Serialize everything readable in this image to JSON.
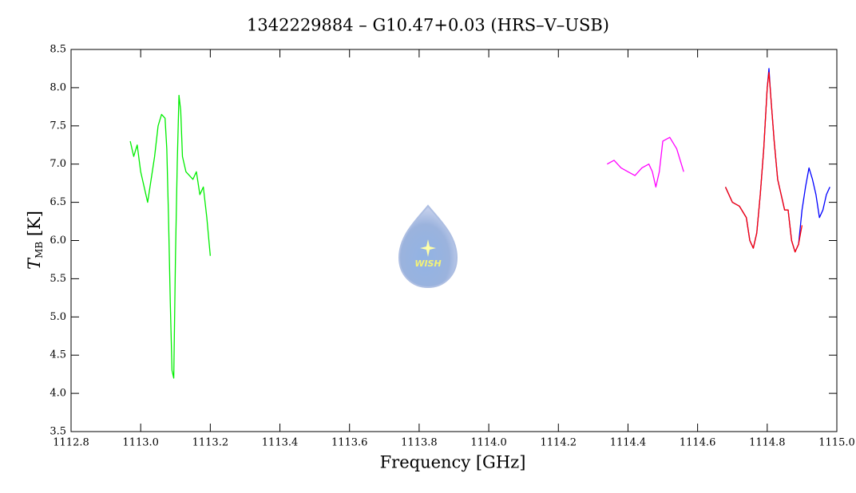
{
  "chart_data": {
    "type": "line",
    "title": "1342229884 – G10.47+0.03 (HRS–V–USB)",
    "xlabel": "Frequency [GHz]",
    "ylabel": "T",
    "ylabel_sub": "MB",
    "ylabel_unit": "[K]",
    "logo": "WISH",
    "xlim": [
      1112.8,
      1115.0
    ],
    "ylim": [
      3.5,
      8.5
    ],
    "xticks": [
      1112.8,
      {
        "value": 1113,
        "label": "1113.0"
      },
      1113.2,
      1113.4,
      1113.6,
      1113.8,
      {
        "value": 1114,
        "label": "1114.0"
      },
      1114.2,
      1114.4,
      1114.6,
      1114.8,
      {
        "value": 1115,
        "label": "1115.0"
      }
    ],
    "yticks": [
      3.5,
      {
        "value": 4,
        "label": "4.0"
      },
      4.5,
      {
        "value": 5,
        "label": "5.0"
      },
      5.5,
      {
        "value": 6,
        "label": "6.0"
      },
      6.5,
      {
        "value": 7,
        "label": "7.0"
      },
      7.5,
      {
        "value": 8,
        "label": "8.0"
      },
      8.5
    ],
    "series": [
      {
        "color": "#00ee00",
        "x": [
          1112.97,
          1112.98,
          1112.99,
          1113.0,
          1113.01,
          1113.02,
          1113.03,
          1113.04,
          1113.05,
          1113.06,
          1113.07,
          1113.075,
          1113.08,
          1113.085,
          1113.09,
          1113.095,
          1113.1,
          1113.105,
          1113.11,
          1113.115,
          1113.12,
          1113.13,
          1113.14,
          1113.15,
          1113.16,
          1113.17,
          1113.18,
          1113.19,
          1113.2
        ],
        "values": [
          7.3,
          7.1,
          7.25,
          6.9,
          6.7,
          6.5,
          6.8,
          7.1,
          7.5,
          7.65,
          7.6,
          7.2,
          6.3,
          5.2,
          4.3,
          4.2,
          5.8,
          7.0,
          7.9,
          7.7,
          7.1,
          6.9,
          6.85,
          6.8,
          6.9,
          6.6,
          6.7,
          6.3,
          5.8
        ]
      },
      {
        "color": "#ff00ff",
        "x": [
          1114.34,
          1114.36,
          1114.38,
          1114.4,
          1114.42,
          1114.44,
          1114.46,
          1114.47,
          1114.48,
          1114.49,
          1114.5,
          1114.52,
          1114.54,
          1114.55,
          1114.56
        ],
        "values": [
          7.0,
          7.05,
          6.95,
          6.9,
          6.85,
          6.95,
          7.0,
          6.9,
          6.7,
          6.9,
          7.3,
          7.35,
          7.2,
          7.05,
          6.9
        ]
      },
      {
        "color": "#0000ff",
        "x": [
          1114.68,
          1114.7,
          1114.72,
          1114.74,
          1114.75,
          1114.76,
          1114.77,
          1114.78,
          1114.79,
          1114.8,
          1114.805,
          1114.81,
          1114.82,
          1114.83,
          1114.84,
          1114.85,
          1114.86,
          1114.87,
          1114.88,
          1114.89,
          1114.9,
          1114.91,
          1114.92,
          1114.93,
          1114.94,
          1114.95,
          1114.96,
          1114.97,
          1114.98
        ],
        "values": [
          6.7,
          6.5,
          6.45,
          6.3,
          6.0,
          5.9,
          6.1,
          6.6,
          7.2,
          8.0,
          8.25,
          7.9,
          7.3,
          6.8,
          6.6,
          6.4,
          6.4,
          6.0,
          5.85,
          5.95,
          6.4,
          6.7,
          6.95,
          6.8,
          6.6,
          6.3,
          6.4,
          6.6,
          6.7
        ]
      },
      {
        "color": "#ff0000",
        "x": [
          1114.68,
          1114.7,
          1114.72,
          1114.74,
          1114.75,
          1114.76,
          1114.77,
          1114.78,
          1114.79,
          1114.8,
          1114.805,
          1114.81,
          1114.82,
          1114.83,
          1114.84,
          1114.85,
          1114.86,
          1114.87,
          1114.88,
          1114.89,
          1114.9
        ],
        "values": [
          6.7,
          6.5,
          6.45,
          6.3,
          6.0,
          5.9,
          6.1,
          6.6,
          7.2,
          8.0,
          8.2,
          7.9,
          7.3,
          6.8,
          6.6,
          6.4,
          6.4,
          6.0,
          5.85,
          5.95,
          6.2
        ]
      }
    ]
  }
}
